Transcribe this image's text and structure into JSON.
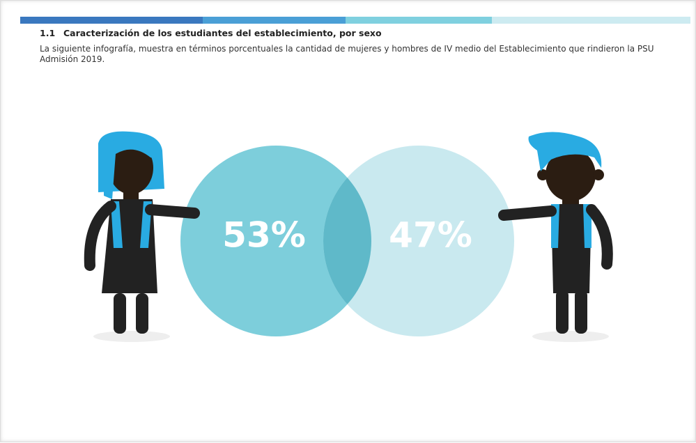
{
  "header": {
    "number": "1.1",
    "title": "Caracterización de los estudiantes del establecimiento, por sexo"
  },
  "intro": "La siguiente infografía, muestra en términos porcentuales la cantidad de mujeres y hombres de IV medio del Establecimiento que rindieron la PSU Admisión 2019.",
  "infographic": {
    "women": "53%",
    "men": "47%"
  }
}
